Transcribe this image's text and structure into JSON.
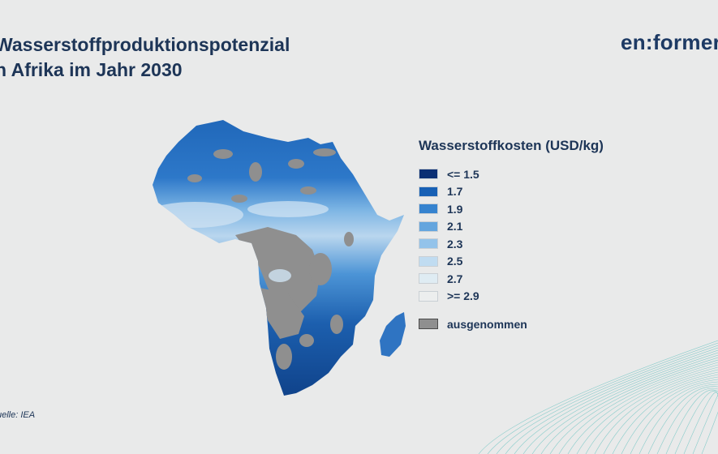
{
  "title": {
    "line1": "Wasserstoffproduktionspotenzial",
    "line2": "n Afrika im Jahr 2030"
  },
  "logo": "en:former",
  "legend": {
    "title": "Wasserstoffkosten (USD/kg)",
    "items": [
      {
        "label": "<= 1.5",
        "color": "#0b2f73"
      },
      {
        "label": "1.7",
        "color": "#1760b5"
      },
      {
        "label": "1.9",
        "color": "#3583cf"
      },
      {
        "label": "2.1",
        "color": "#64a5de"
      },
      {
        "label": "2.3",
        "color": "#93c3ea"
      },
      {
        "label": "2.5",
        "color": "#c0dcf1"
      },
      {
        "label": "2.7",
        "color": "#dfecf3"
      },
      {
        "label": ">= 2.9",
        "color": "#eceeee"
      }
    ],
    "excluded": {
      "label": "ausgenommen",
      "color": "#8f8f8f"
    }
  },
  "source": "uelle: IEA",
  "colors": {
    "title": "#1d3557",
    "background": "#e9eaea",
    "deco_lines": "#6fc4c2"
  }
}
